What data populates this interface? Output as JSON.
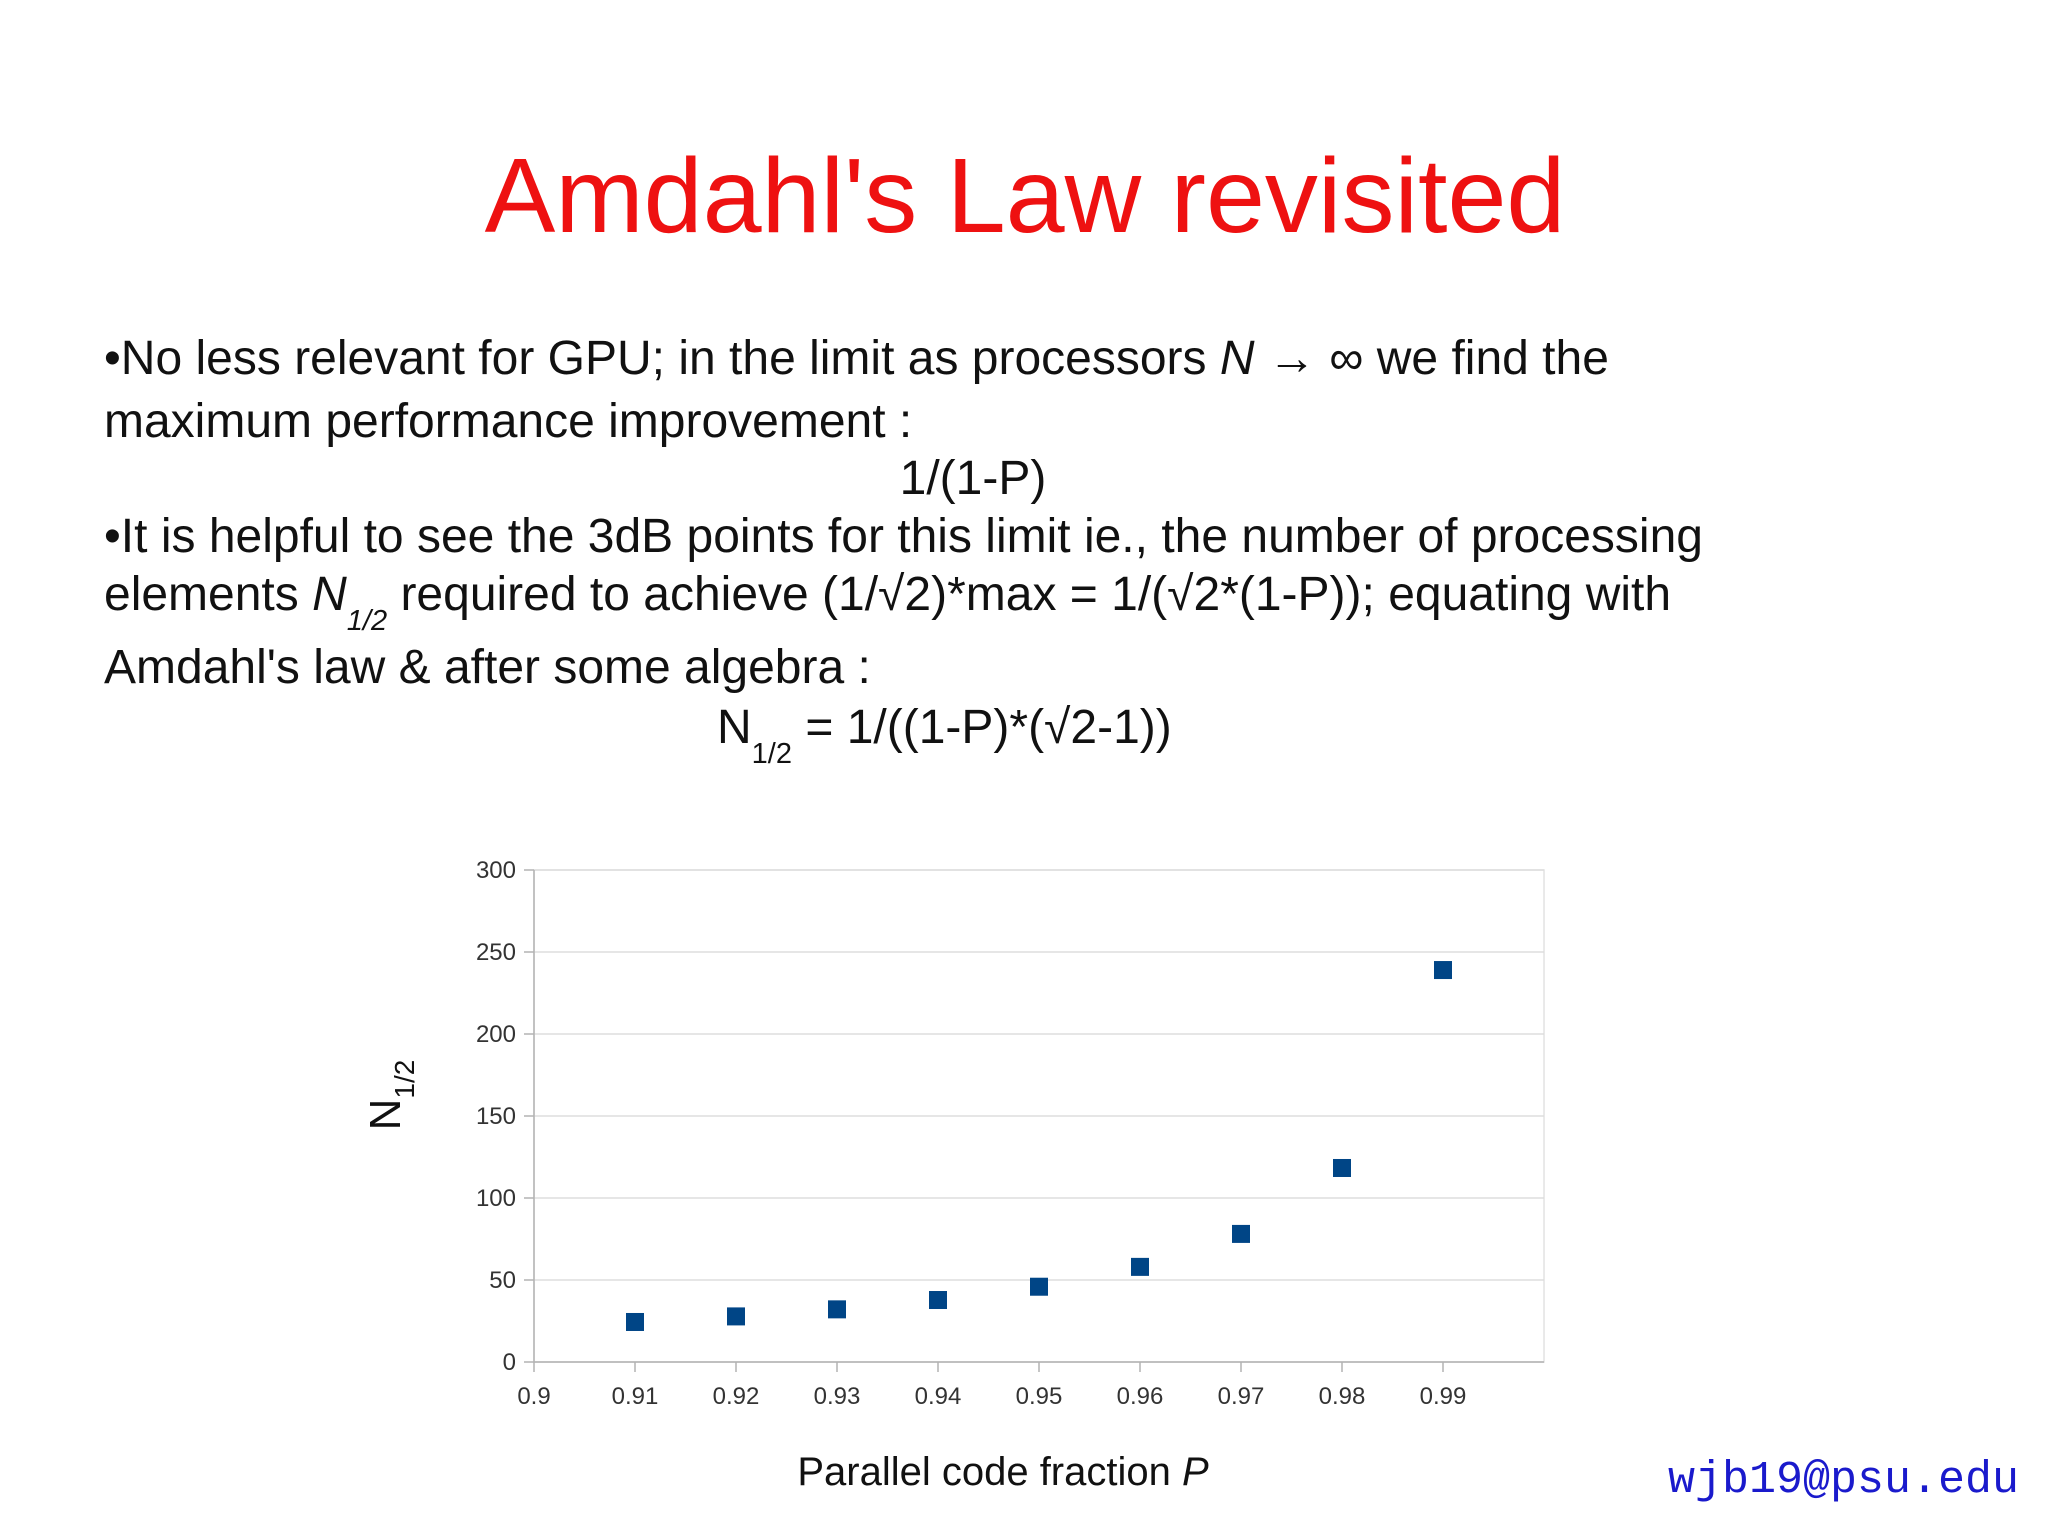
{
  "slide": {
    "title": "Amdahl's Law revisited",
    "lines": [
      [
        "•No less relevant for GPU; in the limit as processors ",
        "N",
        " → ∞ we find the"
      ],
      [
        "maximum performance improvement :"
      ],
      [
        "1/(1-P)"
      ],
      [
        "•It is helpful to see the 3dB points for this limit ie., the number of processing"
      ],
      [
        "elements ",
        "N",
        "1/2",
        " required to achieve (1/√2)*max = 1/(√2*(1-P)); equating with"
      ],
      [
        "Amdahl's law & after some algebra :"
      ],
      [
        "N",
        "1/2",
        " = 1/((1-P)*(√2-1))"
      ]
    ],
    "footer": "wjb19@psu.edu"
  },
  "chart_data": {
    "type": "scatter",
    "y_label": [
      "N",
      "1/2"
    ],
    "x_label": [
      "Parallel code fraction ",
      "P"
    ],
    "x": [
      0.91,
      0.92,
      0.93,
      0.94,
      0.95,
      0.96,
      0.97,
      0.98,
      0.99
    ],
    "values": [
      24.4,
      27.8,
      32.1,
      37.8,
      45.9,
      58.0,
      78.1,
      118.3,
      239.0
    ],
    "color": "#004586",
    "xlim": [
      0.9,
      1.0
    ],
    "xticks": [
      0.9,
      0.91,
      0.92,
      0.93,
      0.94,
      0.95,
      0.96,
      0.97,
      0.98,
      0.99
    ],
    "ylim": [
      0,
      300
    ],
    "yticks": [
      0,
      50,
      100,
      150,
      200,
      250,
      300
    ],
    "grid": true
  }
}
